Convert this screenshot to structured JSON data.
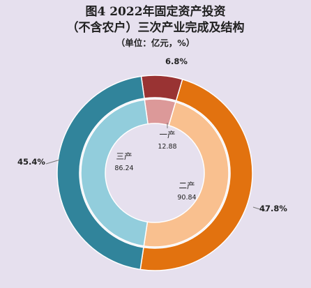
{
  "title": {
    "line1": "图4    2022年固定资产投资",
    "line2": "（不含农户）三次产业完成及结构",
    "unit": "（单位：亿元，%）"
  },
  "chart_data": {
    "type": "pie",
    "variant": "double-donut",
    "inner_ring": {
      "categories": [
        "一产",
        "二产",
        "三产"
      ],
      "values": [
        12.88,
        90.84,
        86.24
      ]
    },
    "outer_ring": {
      "categories": [
        "一产",
        "二产",
        "三产"
      ],
      "values": [
        6.8,
        47.8,
        45.4
      ],
      "labels": [
        "6.8%",
        "47.8%",
        "45.4%"
      ]
    },
    "colors": {
      "outer": [
        "#993333",
        "#e2720f",
        "#31849b"
      ],
      "inner": [
        "#dc9999",
        "#f9c08f",
        "#92cddc"
      ]
    },
    "inner_labels": [
      {
        "name": "一产",
        "value": "12.88"
      },
      {
        "name": "二产",
        "value": "90.84"
      },
      {
        "name": "三产",
        "value": "86.24"
      }
    ]
  }
}
